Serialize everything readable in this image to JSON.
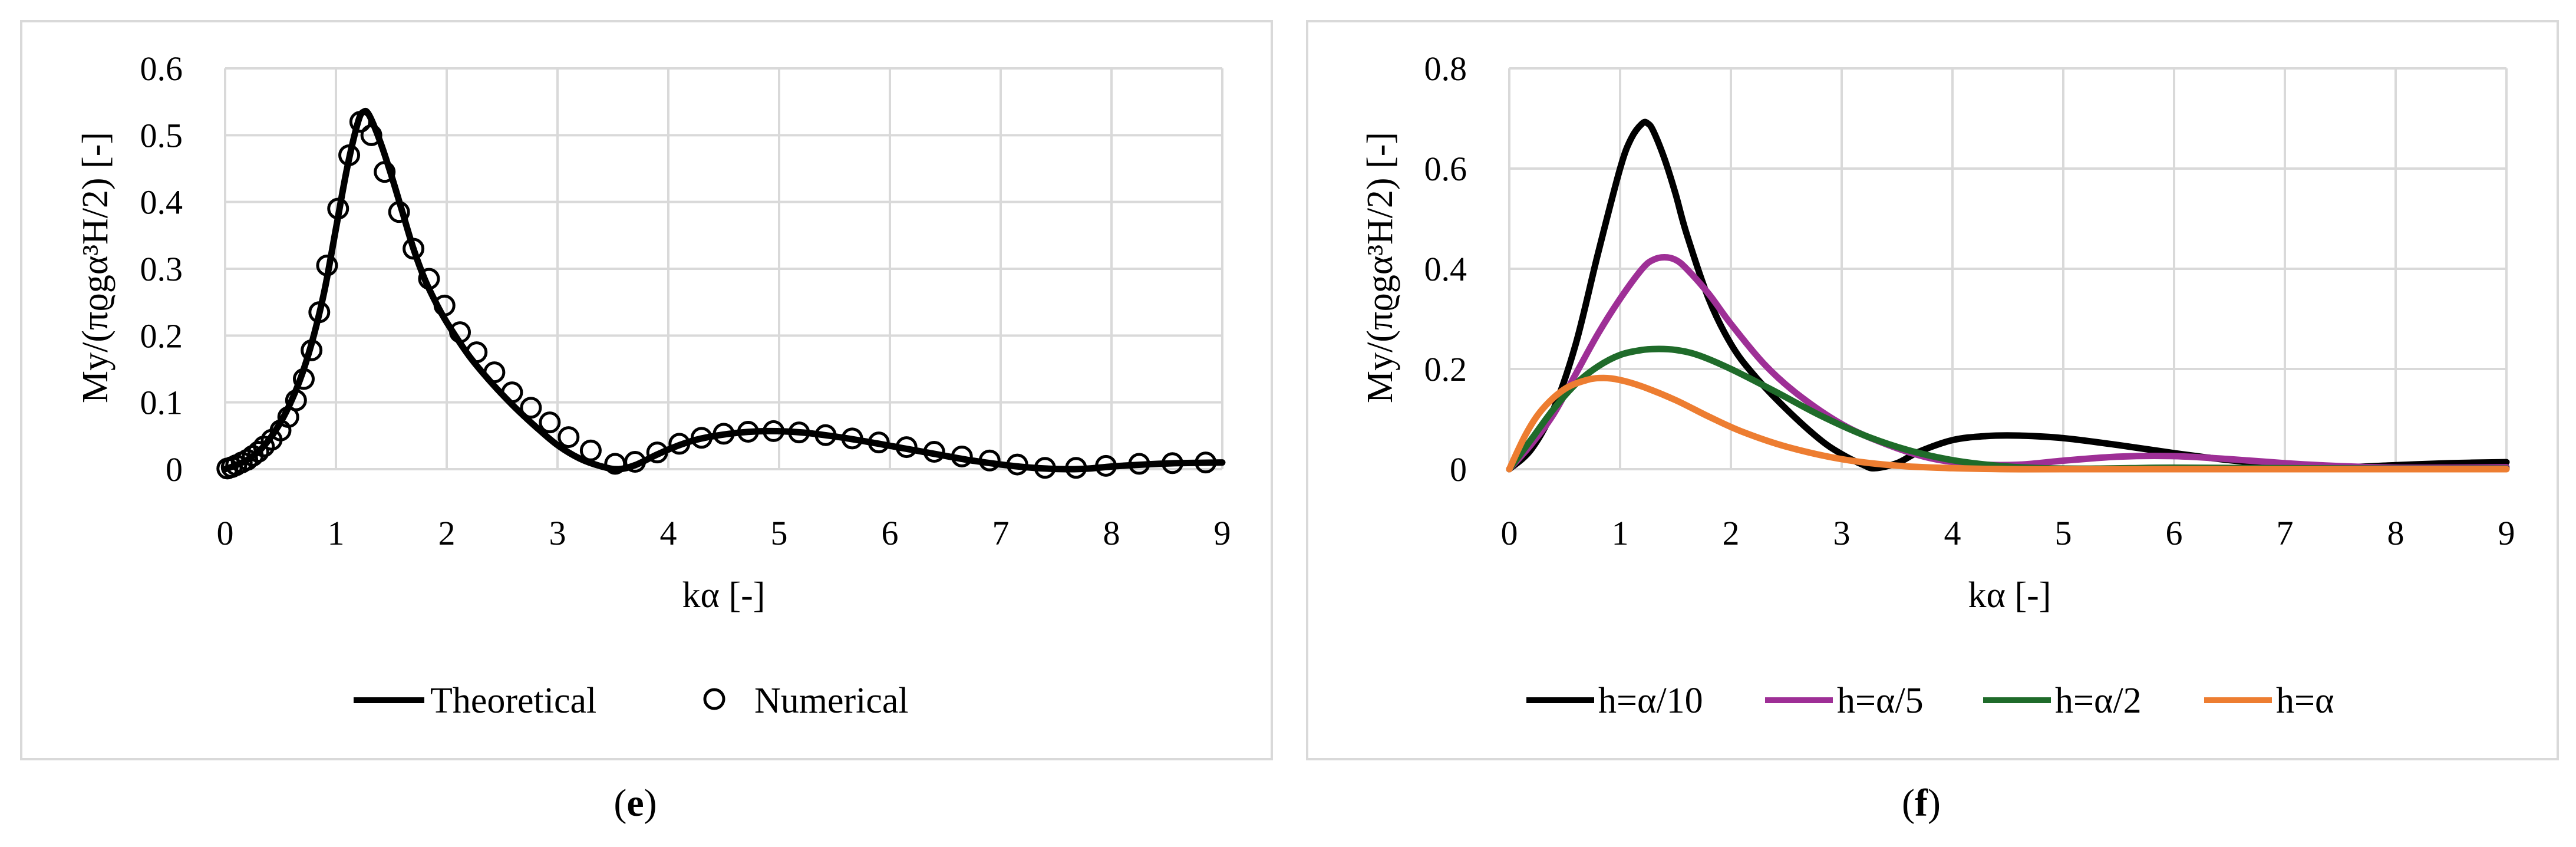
{
  "chart_data": [
    {
      "panel": "e",
      "type": "line",
      "title": "",
      "xlabel": "kα [-]",
      "ylabel": "My/(πϱgα³H/2) [-]",
      "caption_open": "(",
      "caption_letter": "e",
      "caption_close": ")",
      "xlim": [
        0,
        9
      ],
      "ylim": [
        0,
        0.6
      ],
      "xticks": [
        "0",
        "1",
        "2",
        "3",
        "4",
        "5",
        "6",
        "7",
        "8",
        "9"
      ],
      "yticks": [
        "0",
        "0.1",
        "0.2",
        "0.3",
        "0.4",
        "0.5",
        "0.6"
      ],
      "grid": true,
      "legend_position": "bottom",
      "series": [
        {
          "name": "Theoretical",
          "style": "line",
          "color": "#000000",
          "x": [
            0,
            0.1,
            0.2,
            0.3,
            0.4,
            0.5,
            0.6,
            0.7,
            0.8,
            0.9,
            1.0,
            1.1,
            1.2,
            1.25,
            1.3,
            1.4,
            1.5,
            1.6,
            1.7,
            1.8,
            1.9,
            2.0,
            2.2,
            2.4,
            2.6,
            2.8,
            3.0,
            3.2,
            3.4,
            3.55,
            3.7,
            3.9,
            4.1,
            4.3,
            4.6,
            4.9,
            5.2,
            5.5,
            5.8,
            6.1,
            6.4,
            6.7,
            7.0,
            7.3,
            7.6,
            7.8,
            8.0,
            8.3,
            8.6,
            9.0
          ],
          "values": [
            0,
            0.006,
            0.014,
            0.026,
            0.045,
            0.07,
            0.103,
            0.145,
            0.2,
            0.27,
            0.36,
            0.45,
            0.52,
            0.535,
            0.53,
            0.49,
            0.44,
            0.385,
            0.33,
            0.285,
            0.25,
            0.22,
            0.17,
            0.13,
            0.095,
            0.064,
            0.036,
            0.016,
            0.004,
            0.0,
            0.006,
            0.022,
            0.036,
            0.046,
            0.054,
            0.057,
            0.055,
            0.049,
            0.041,
            0.032,
            0.023,
            0.014,
            0.007,
            0.002,
            0.0,
            0.001,
            0.004,
            0.007,
            0.009,
            0.01
          ]
        },
        {
          "name": "Numerical",
          "style": "marker",
          "color": "#000000",
          "x": [
            0.02,
            0.06,
            0.1,
            0.15,
            0.2,
            0.25,
            0.3,
            0.35,
            0.42,
            0.5,
            0.57,
            0.64,
            0.71,
            0.78,
            0.85,
            0.92,
            1.02,
            1.12,
            1.22,
            1.32,
            1.44,
            1.57,
            1.7,
            1.84,
            1.98,
            2.12,
            2.27,
            2.43,
            2.59,
            2.76,
            2.93,
            3.1,
            3.3,
            3.52,
            3.7,
            3.9,
            4.1,
            4.3,
            4.5,
            4.72,
            4.95,
            5.18,
            5.42,
            5.66,
            5.9,
            6.15,
            6.4,
            6.65,
            6.9,
            7.15,
            7.4,
            7.68,
            7.95,
            8.25,
            8.55,
            8.85
          ],
          "values": [
            0.001,
            0.003,
            0.006,
            0.01,
            0.014,
            0.02,
            0.026,
            0.034,
            0.044,
            0.058,
            0.078,
            0.103,
            0.135,
            0.178,
            0.235,
            0.305,
            0.39,
            0.47,
            0.52,
            0.5,
            0.445,
            0.385,
            0.33,
            0.285,
            0.245,
            0.205,
            0.175,
            0.145,
            0.115,
            0.092,
            0.07,
            0.048,
            0.028,
            0.008,
            0.011,
            0.025,
            0.038,
            0.047,
            0.053,
            0.056,
            0.057,
            0.055,
            0.051,
            0.046,
            0.04,
            0.033,
            0.026,
            0.019,
            0.013,
            0.007,
            0.002,
            0.002,
            0.005,
            0.008,
            0.009,
            0.01
          ]
        }
      ]
    },
    {
      "panel": "f",
      "type": "line",
      "title": "",
      "xlabel": "kα [-]",
      "ylabel": "My/(πϱgα³H/2) [-]",
      "caption_open": "(",
      "caption_letter": "f",
      "caption_close": ")",
      "xlim": [
        0,
        9
      ],
      "ylim": [
        0,
        0.8
      ],
      "xticks": [
        "0",
        "1",
        "2",
        "3",
        "4",
        "5",
        "6",
        "7",
        "8",
        "9"
      ],
      "yticks": [
        "0",
        "0.2",
        "0.4",
        "0.6",
        "0.8"
      ],
      "grid": true,
      "legend_position": "bottom",
      "series": [
        {
          "name": "h=α/10",
          "style": "line",
          "color": "#000000",
          "x": [
            0,
            0.2,
            0.4,
            0.6,
            0.8,
            1.0,
            1.1,
            1.2,
            1.25,
            1.3,
            1.4,
            1.5,
            1.6,
            1.8,
            2.0,
            2.2,
            2.5,
            2.8,
            3.0,
            3.2,
            3.3,
            3.5,
            3.7,
            4.0,
            4.3,
            4.6,
            5.0,
            5.5,
            6.0,
            6.5,
            7.0,
            7.5,
            8.0,
            8.5,
            9.0
          ],
          "values": [
            0,
            0.04,
            0.12,
            0.25,
            0.43,
            0.6,
            0.66,
            0.69,
            0.69,
            0.675,
            0.62,
            0.55,
            0.47,
            0.34,
            0.25,
            0.19,
            0.12,
            0.06,
            0.03,
            0.008,
            0.002,
            0.012,
            0.035,
            0.058,
            0.066,
            0.067,
            0.062,
            0.048,
            0.032,
            0.018,
            0.008,
            0.004,
            0.008,
            0.012,
            0.014
          ]
        },
        {
          "name": "h=α/5",
          "style": "line",
          "color": "#9e2f96",
          "x": [
            0,
            0.2,
            0.4,
            0.6,
            0.8,
            1.0,
            1.2,
            1.3,
            1.4,
            1.5,
            1.6,
            1.8,
            2.0,
            2.3,
            2.6,
            3.0,
            3.4,
            3.8,
            4.2,
            4.6,
            5.0,
            5.5,
            6.0,
            6.5,
            7.0,
            7.5,
            8.0,
            8.5,
            9.0
          ],
          "values": [
            0,
            0.05,
            0.11,
            0.19,
            0.27,
            0.34,
            0.4,
            0.418,
            0.423,
            0.418,
            0.4,
            0.35,
            0.29,
            0.21,
            0.15,
            0.09,
            0.05,
            0.022,
            0.01,
            0.009,
            0.017,
            0.025,
            0.026,
            0.02,
            0.012,
            0.006,
            0.003,
            0.003,
            0.004
          ]
        },
        {
          "name": "h=α/2",
          "style": "line",
          "color": "#1f6b2a",
          "x": [
            0,
            0.2,
            0.4,
            0.6,
            0.8,
            1.0,
            1.2,
            1.35,
            1.5,
            1.7,
            2.0,
            2.4,
            2.8,
            3.2,
            3.6,
            4.0,
            4.4,
            4.8,
            5.2,
            5.6,
            6.0,
            7.0,
            8.0,
            9.0
          ],
          "values": [
            0,
            0.06,
            0.12,
            0.17,
            0.205,
            0.228,
            0.238,
            0.24,
            0.238,
            0.228,
            0.2,
            0.155,
            0.108,
            0.068,
            0.038,
            0.018,
            0.007,
            0.002,
            0.001,
            0.002,
            0.003,
            0.002,
            0.001,
            0.001
          ]
        },
        {
          "name": "h=α",
          "style": "line",
          "color": "#ed7d31",
          "x": [
            0,
            0.15,
            0.3,
            0.5,
            0.7,
            0.85,
            1.0,
            1.2,
            1.5,
            1.8,
            2.1,
            2.5,
            3.0,
            3.5,
            4.0,
            4.5,
            5.0,
            6.0,
            7.0,
            8.0,
            9.0
          ],
          "values": [
            0,
            0.07,
            0.12,
            0.16,
            0.178,
            0.182,
            0.178,
            0.165,
            0.138,
            0.105,
            0.075,
            0.045,
            0.02,
            0.007,
            0.002,
            0.0,
            0.0,
            0.0,
            0.0,
            0.0,
            0.0
          ]
        }
      ]
    }
  ]
}
